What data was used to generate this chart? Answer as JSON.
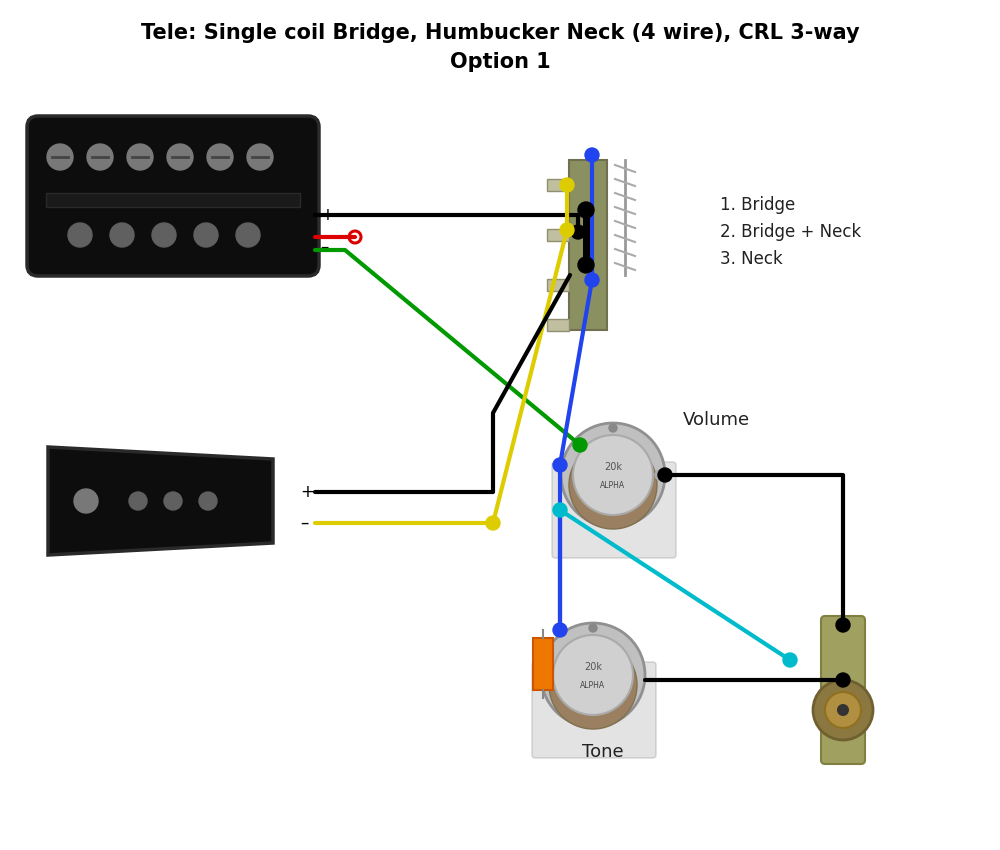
{
  "title_line1": "Tele: Single coil Bridge, Humbucker Neck (4 wire), CRL 3-way",
  "title_line2": "Option 1",
  "title_fontsize": 15,
  "bg_color": "#ffffff",
  "legend_lines": [
    "1. Bridge",
    "2. Bridge + Neck",
    "3. Neck"
  ],
  "volume_label": "Volume",
  "tone_label": "Tone",
  "black": "#000000",
  "red": "#dd0000",
  "green": "#009900",
  "yellow": "#ddcc00",
  "blue": "#2244ee",
  "cyan": "#00bbcc",
  "orange": "#ff8800",
  "gray_pot": "#c8c8c8",
  "gray_pot_mid": "#b0b0b0",
  "brown_pot": "#8B6340",
  "switch_metal": "#a8a060",
  "switch_edge": "#807840",
  "jack_body": "#8a7a40",
  "jack_metal": "#b0a060"
}
